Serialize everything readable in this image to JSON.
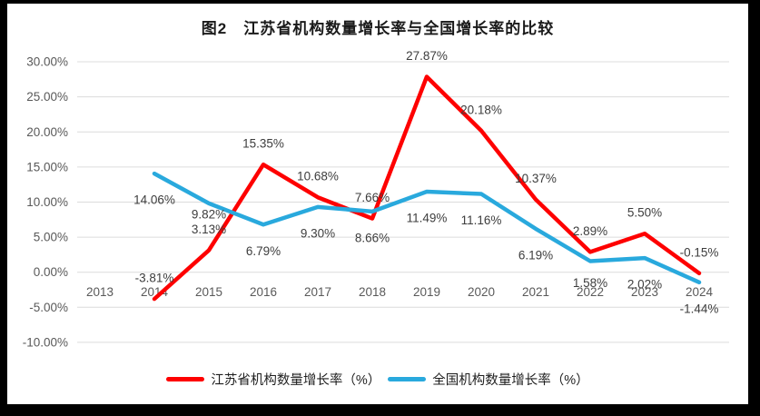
{
  "frame": {
    "border_color": "#000000",
    "chart_background": "#ffffff"
  },
  "title": "图2　江苏省机构数量增长率与全国增长率的比较",
  "chart_data": {
    "type": "line",
    "title": "图2　江苏省机构数量增长率与全国增长率的比较",
    "categories": [
      "2013",
      "2014",
      "2015",
      "2016",
      "2017",
      "2018",
      "2019",
      "2020",
      "2021",
      "2022",
      "2023",
      "2024"
    ],
    "series": [
      {
        "name": "江苏省机构数量增长率（%）",
        "color": "#fe0000",
        "values": [
          null,
          -3.81,
          3.13,
          15.35,
          10.68,
          7.66,
          27.87,
          20.18,
          10.37,
          2.89,
          5.5,
          -0.15
        ],
        "labels": [
          "",
          "-3.81%",
          "3.13%",
          "15.35%",
          "10.68%",
          "7.66%",
          "27.87%",
          "20.18%",
          "10.37%",
          "2.89%",
          "5.50%",
          "-0.15%"
        ],
        "label_position": "above"
      },
      {
        "name": "全国机构数量增长率（%）",
        "color": "#29a9dd",
        "values": [
          null,
          14.06,
          9.82,
          6.79,
          9.3,
          8.66,
          11.49,
          11.16,
          6.19,
          1.58,
          2.02,
          -1.44
        ],
        "labels": [
          "",
          "14.06%",
          "9.82%",
          "6.79%",
          "9.30%",
          "8.66%",
          "11.49%",
          "11.16%",
          "6.19%",
          "1.58%",
          "2.02%",
          "-1.44%"
        ],
        "label_position": "below"
      }
    ],
    "y_axis": {
      "max": 30,
      "min": -10,
      "step": 5,
      "tick_labels": [
        "30.00%",
        "25.00%",
        "20.00%",
        "15.00%",
        "10.00%",
        "5.00%",
        "0.00%",
        "-5.00%",
        "-10.00%"
      ]
    },
    "x_axis": {
      "tick_labels": [
        "2013",
        "2014",
        "2015",
        "2016",
        "2017",
        "2018",
        "2019",
        "2020",
        "2021",
        "2022",
        "2023",
        "2024"
      ]
    },
    "grid": true,
    "gridline_color": "#dcdcdc",
    "legend_position": "bottom"
  }
}
